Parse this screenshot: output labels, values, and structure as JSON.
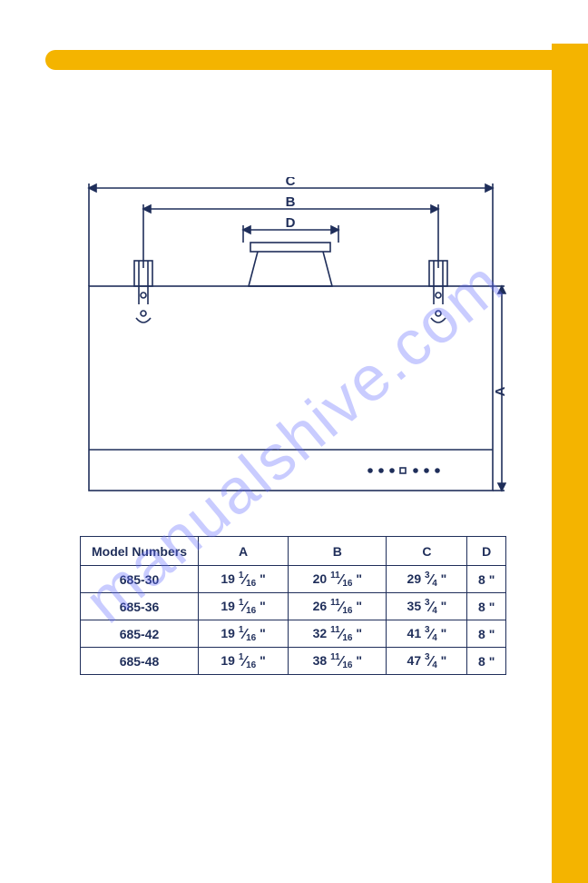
{
  "colors": {
    "accent": "#f4b400",
    "line": "#1f2e5a",
    "text": "#1f2e5a",
    "watermark": "rgba(100,110,255,0.35)",
    "background": "#ffffff"
  },
  "watermark": {
    "text": "manualshive.com"
  },
  "diagram": {
    "type": "technical-drawing",
    "dimension_labels": {
      "A": "A",
      "B": "B",
      "C": "C",
      "D": "D"
    },
    "stroke_width": 1.6,
    "stroke_color": "#1f2e5a"
  },
  "table": {
    "columns": [
      "Model Numbers",
      "A",
      "B",
      "C",
      "D"
    ],
    "rows": [
      {
        "model": "685-30",
        "A": {
          "w": "19",
          "n": "1",
          "d": "16"
        },
        "B": {
          "w": "20",
          "n": "11",
          "d": "16"
        },
        "C": {
          "w": "29",
          "n": "3",
          "d": "4"
        },
        "D": {
          "w": "8",
          "n": "",
          "d": ""
        }
      },
      {
        "model": "685-36",
        "A": {
          "w": "19",
          "n": "1",
          "d": "16"
        },
        "B": {
          "w": "26",
          "n": "11",
          "d": "16"
        },
        "C": {
          "w": "35",
          "n": "3",
          "d": "4"
        },
        "D": {
          "w": "8",
          "n": "",
          "d": ""
        }
      },
      {
        "model": "685-42",
        "A": {
          "w": "19",
          "n": "1",
          "d": "16"
        },
        "B": {
          "w": "32",
          "n": "11",
          "d": "16"
        },
        "C": {
          "w": "41",
          "n": "3",
          "d": "4"
        },
        "D": {
          "w": "8",
          "n": "",
          "d": ""
        }
      },
      {
        "model": "685-48",
        "A": {
          "w": "19",
          "n": "1",
          "d": "16"
        },
        "B": {
          "w": "38",
          "n": "11",
          "d": "16"
        },
        "C": {
          "w": "47",
          "n": "3",
          "d": "4"
        },
        "D": {
          "w": "8",
          "n": "",
          "d": ""
        }
      }
    ],
    "border_color": "#1f2e5a",
    "text_color": "#1f2e5a",
    "font_size": 14
  }
}
